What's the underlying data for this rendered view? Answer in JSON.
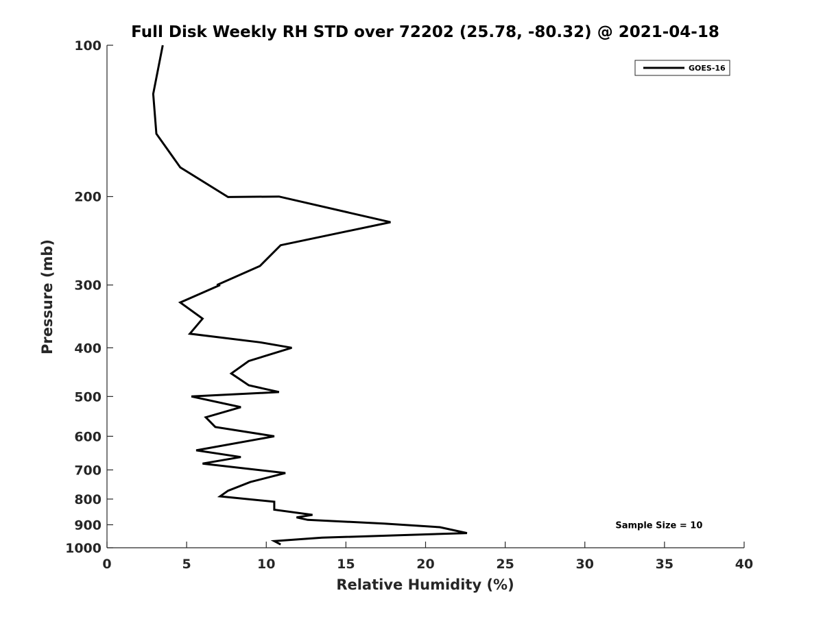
{
  "chart_data": {
    "type": "line",
    "title": "Full Disk Weekly RH STD over 72202 (25.78, -80.32) @ 2021-04-18",
    "xlabel": "Relative Humidity (%)",
    "ylabel": "Pressure (mb)",
    "xlim": [
      0,
      40
    ],
    "ylim": [
      100,
      1000
    ],
    "y_scale": "log",
    "y_reversed": true,
    "grid": false,
    "legend_position": "top-right",
    "x_ticks": [
      0,
      5,
      10,
      15,
      20,
      25,
      30,
      35,
      40
    ],
    "x_tick_labels": [
      "0",
      "5",
      "10",
      "15",
      "20",
      "25",
      "30",
      "35",
      "40"
    ],
    "y_ticks": [
      100,
      200,
      300,
      400,
      500,
      600,
      700,
      800,
      900,
      1000
    ],
    "y_tick_labels": [
      "100",
      "200",
      "300",
      "400",
      "500",
      "600",
      "700",
      "800",
      "900",
      "1000"
    ],
    "series": [
      {
        "name": "GOES-16",
        "color": "#000000",
        "points": [
          [
            3.5,
            100
          ],
          [
            2.9,
            125
          ],
          [
            3.1,
            150
          ],
          [
            4.6,
            175
          ],
          [
            7.6,
            200.5
          ],
          [
            10.8,
            200
          ],
          [
            17.8,
            225
          ],
          [
            10.9,
            250
          ],
          [
            9.6,
            275
          ],
          [
            6.9,
            300
          ],
          [
            7.1,
            300
          ],
          [
            4.6,
            325
          ],
          [
            6.0,
            350
          ],
          [
            5.2,
            375
          ],
          [
            9.6,
            390
          ],
          [
            11.6,
            400
          ],
          [
            8.9,
            425
          ],
          [
            7.8,
            450
          ],
          [
            8.9,
            475
          ],
          [
            10.8,
            490
          ],
          [
            5.3,
            500
          ],
          [
            8.4,
            525
          ],
          [
            6.2,
            550
          ],
          [
            6.8,
            575
          ],
          [
            10.5,
            600
          ],
          [
            5.6,
            640
          ],
          [
            8.4,
            660
          ],
          [
            6.0,
            680
          ],
          [
            11.2,
            710
          ],
          [
            9.0,
            740
          ],
          [
            7.6,
            770
          ],
          [
            7.1,
            790
          ],
          [
            10.5,
            810
          ],
          [
            10.5,
            840
          ],
          [
            12.9,
            860
          ],
          [
            11.9,
            870
          ],
          [
            12.6,
            880
          ],
          [
            17.4,
            895
          ],
          [
            20.9,
            910
          ],
          [
            22.6,
            935
          ],
          [
            13.5,
            955
          ],
          [
            10.5,
            970
          ],
          [
            10.9,
            985
          ]
        ]
      }
    ],
    "annotations": [
      {
        "text": "Sample Size = 10",
        "x": 35,
        "y": 900
      }
    ]
  }
}
